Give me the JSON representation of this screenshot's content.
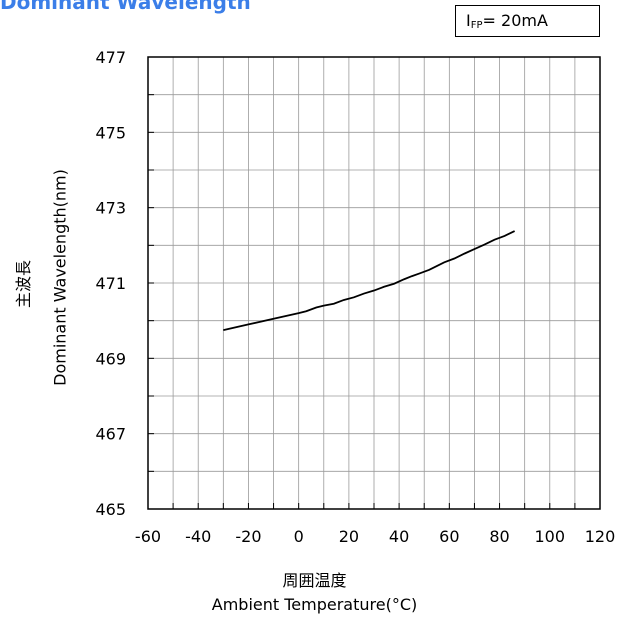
{
  "page": {
    "title": "Dominant Wavelength",
    "title_color": "#3b7ee8",
    "condition_symbol": "I",
    "condition_subscript": "FP",
    "condition_value": "= 20mA"
  },
  "chart_data": {
    "type": "line",
    "title": "Dominant Wavelength",
    "xlabel_jp": "周囲温度",
    "xlabel": "Ambient Temperature(°C)",
    "ylabel_jp": "主波長",
    "ylabel": "Dominant Wavelength(nm)",
    "xlim": [
      -60,
      120
    ],
    "ylim": [
      465,
      477
    ],
    "xticks": [
      -60,
      -40,
      -20,
      0,
      20,
      40,
      60,
      80,
      100,
      120
    ],
    "yticks": [
      465,
      467,
      469,
      471,
      473,
      475,
      477
    ],
    "grid": true,
    "series": [
      {
        "color": "#000000",
        "x": [
          -30,
          -20,
          -10,
          0,
          3,
          7,
          10,
          14,
          18,
          22,
          26,
          30,
          34,
          38,
          42,
          45,
          48,
          52,
          55,
          58,
          62,
          66,
          70,
          74,
          78,
          82,
          86
        ],
        "y": [
          469.75,
          469.9,
          470.05,
          470.2,
          470.25,
          470.35,
          470.4,
          470.45,
          470.55,
          470.62,
          470.72,
          470.8,
          470.9,
          470.98,
          471.1,
          471.18,
          471.25,
          471.35,
          471.45,
          471.55,
          471.65,
          471.78,
          471.9,
          472.02,
          472.15,
          472.25,
          472.38
        ]
      }
    ]
  }
}
